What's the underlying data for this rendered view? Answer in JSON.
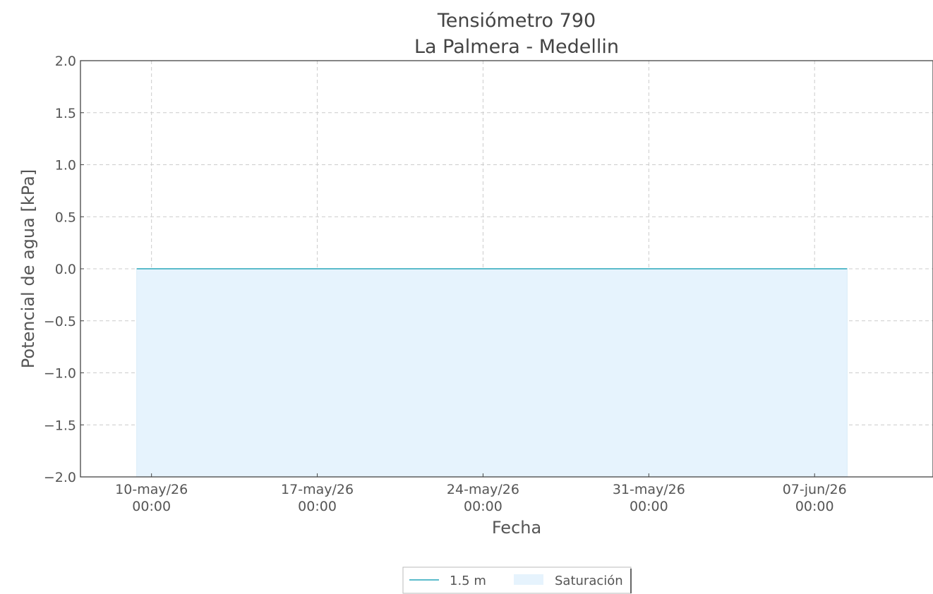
{
  "chart_data": {
    "type": "line",
    "title": "Tensiómetro 790",
    "subtitle": "La Palmera - Medellin",
    "xlabel": "Fecha",
    "ylabel": "Potencial de agua [kPa]",
    "ylim": [
      -2.0,
      2.0
    ],
    "yticks": [
      {
        "value": 2.0,
        "label": "2.0"
      },
      {
        "value": 1.5,
        "label": "1.5"
      },
      {
        "value": 1.0,
        "label": "1.0"
      },
      {
        "value": 0.5,
        "label": "0.5"
      },
      {
        "value": 0.0,
        "label": "0.0"
      },
      {
        "value": -0.5,
        "label": "−0.5"
      },
      {
        "value": -1.0,
        "label": "−1.0"
      },
      {
        "value": -1.5,
        "label": "−1.5"
      },
      {
        "value": -2.0,
        "label": "−2.0"
      }
    ],
    "xlim": [
      "2026-05-07T00:00",
      "2026-06-12T00:00"
    ],
    "xticks": [
      {
        "value": "2026-05-10T00:00",
        "line1": "10-may/26",
        "line2": "00:00"
      },
      {
        "value": "2026-05-17T00:00",
        "line1": "17-may/26",
        "line2": "00:00"
      },
      {
        "value": "2026-05-24T00:00",
        "line1": "24-may/26",
        "line2": "00:00"
      },
      {
        "value": "2026-05-31T00:00",
        "line1": "31-may/26",
        "line2": "00:00"
      },
      {
        "value": "2026-06-07T00:00",
        "line1": "07-jun/26",
        "line2": "00:00"
      }
    ],
    "grid": true,
    "series": [
      {
        "name": "1.5 m",
        "kind": "line",
        "color": "#5bbccb",
        "x": [
          "2026-05-09T09:00",
          "2026-06-08T09:00"
        ],
        "y": [
          0.0,
          0.0
        ]
      }
    ],
    "bands": [
      {
        "name": "Saturación",
        "kind": "area",
        "color": "#e6f3fd",
        "x": [
          "2026-05-09T09:00",
          "2026-06-08T09:00"
        ],
        "y_top": 0.0,
        "y_bottom": -2.0
      }
    ],
    "legend": {
      "placement": "bottom-center",
      "entries": [
        {
          "label": "1.5 m",
          "kind": "line",
          "color": "#5bbccb"
        },
        {
          "label": "Saturación",
          "kind": "area",
          "color": "#e6f3fd"
        }
      ]
    }
  }
}
